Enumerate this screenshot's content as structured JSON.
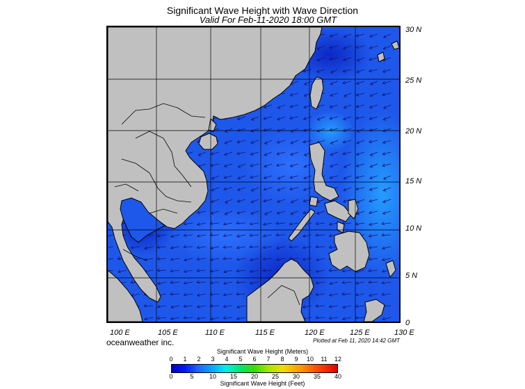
{
  "title": "Significant Wave Height with Wave Direction",
  "subtitle": "Valid For Feb-11-2020 18:00 GMT",
  "lat_labels": [
    "30 N",
    "25 N",
    "20 N",
    "15 N",
    "10 N",
    "5 N",
    "0"
  ],
  "lon_labels": [
    "100 E",
    "105 E",
    "110 E",
    "115 E",
    "120 E",
    "125 E",
    "130 E"
  ],
  "brand": "oceanweather inc.",
  "plotted": "Plotted at Feb 11, 2020 14:42 GMT",
  "colorbar": {
    "meters_title": "Significant Wave Height (Meters)",
    "feet_title": "Significant Wave Height (Feet)",
    "meters_ticks": [
      "0",
      "1",
      "2",
      "3",
      "4",
      "5",
      "6",
      "7",
      "8",
      "9",
      "10",
      "11",
      "12"
    ],
    "feet_ticks": [
      "0",
      "5",
      "10",
      "15",
      "20",
      "25",
      "30",
      "35",
      "40"
    ]
  },
  "colors": {
    "land": "#c0c0c0",
    "sea_low": "#0a2fd6",
    "sea_mid": "#1f6cff",
    "sea_high": "#19b8ff",
    "arrow": "#14146e"
  }
}
